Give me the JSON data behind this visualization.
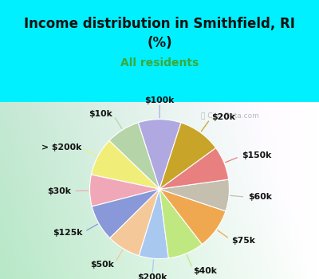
{
  "title_line1": "Income distribution in Smithfield, RI",
  "title_line2": "(%)",
  "subtitle": "All residents",
  "labels": [
    "$100k",
    "$10k",
    "> $200k",
    "$30k",
    "$125k",
    "$50k",
    "$200k",
    "$40k",
    "$75k",
    "$60k",
    "$150k",
    "$20k"
  ],
  "sizes": [
    9.5,
    7.5,
    8.5,
    7.0,
    8.0,
    7.5,
    6.5,
    8.0,
    9.0,
    7.0,
    7.5,
    9.5
  ],
  "colors": [
    "#b0a8e0",
    "#b5d5a8",
    "#f0ee78",
    "#f0a8b8",
    "#8898d8",
    "#f5c89a",
    "#a8c8f0",
    "#c0e880",
    "#f0a850",
    "#c5bfb0",
    "#e88080",
    "#c8a428"
  ],
  "bg_cyan": "#00f0ff",
  "bg_chart_left": "#b8e8c8",
  "bg_chart_right": "#e8f8f0",
  "title_color": "#111111",
  "subtitle_color": "#3aaa3a",
  "label_color": "#111111",
  "watermark": "City-Data.com",
  "label_fontsize": 7.8,
  "startangle": 72,
  "title_fontsize": 12,
  "subtitle_fontsize": 10
}
